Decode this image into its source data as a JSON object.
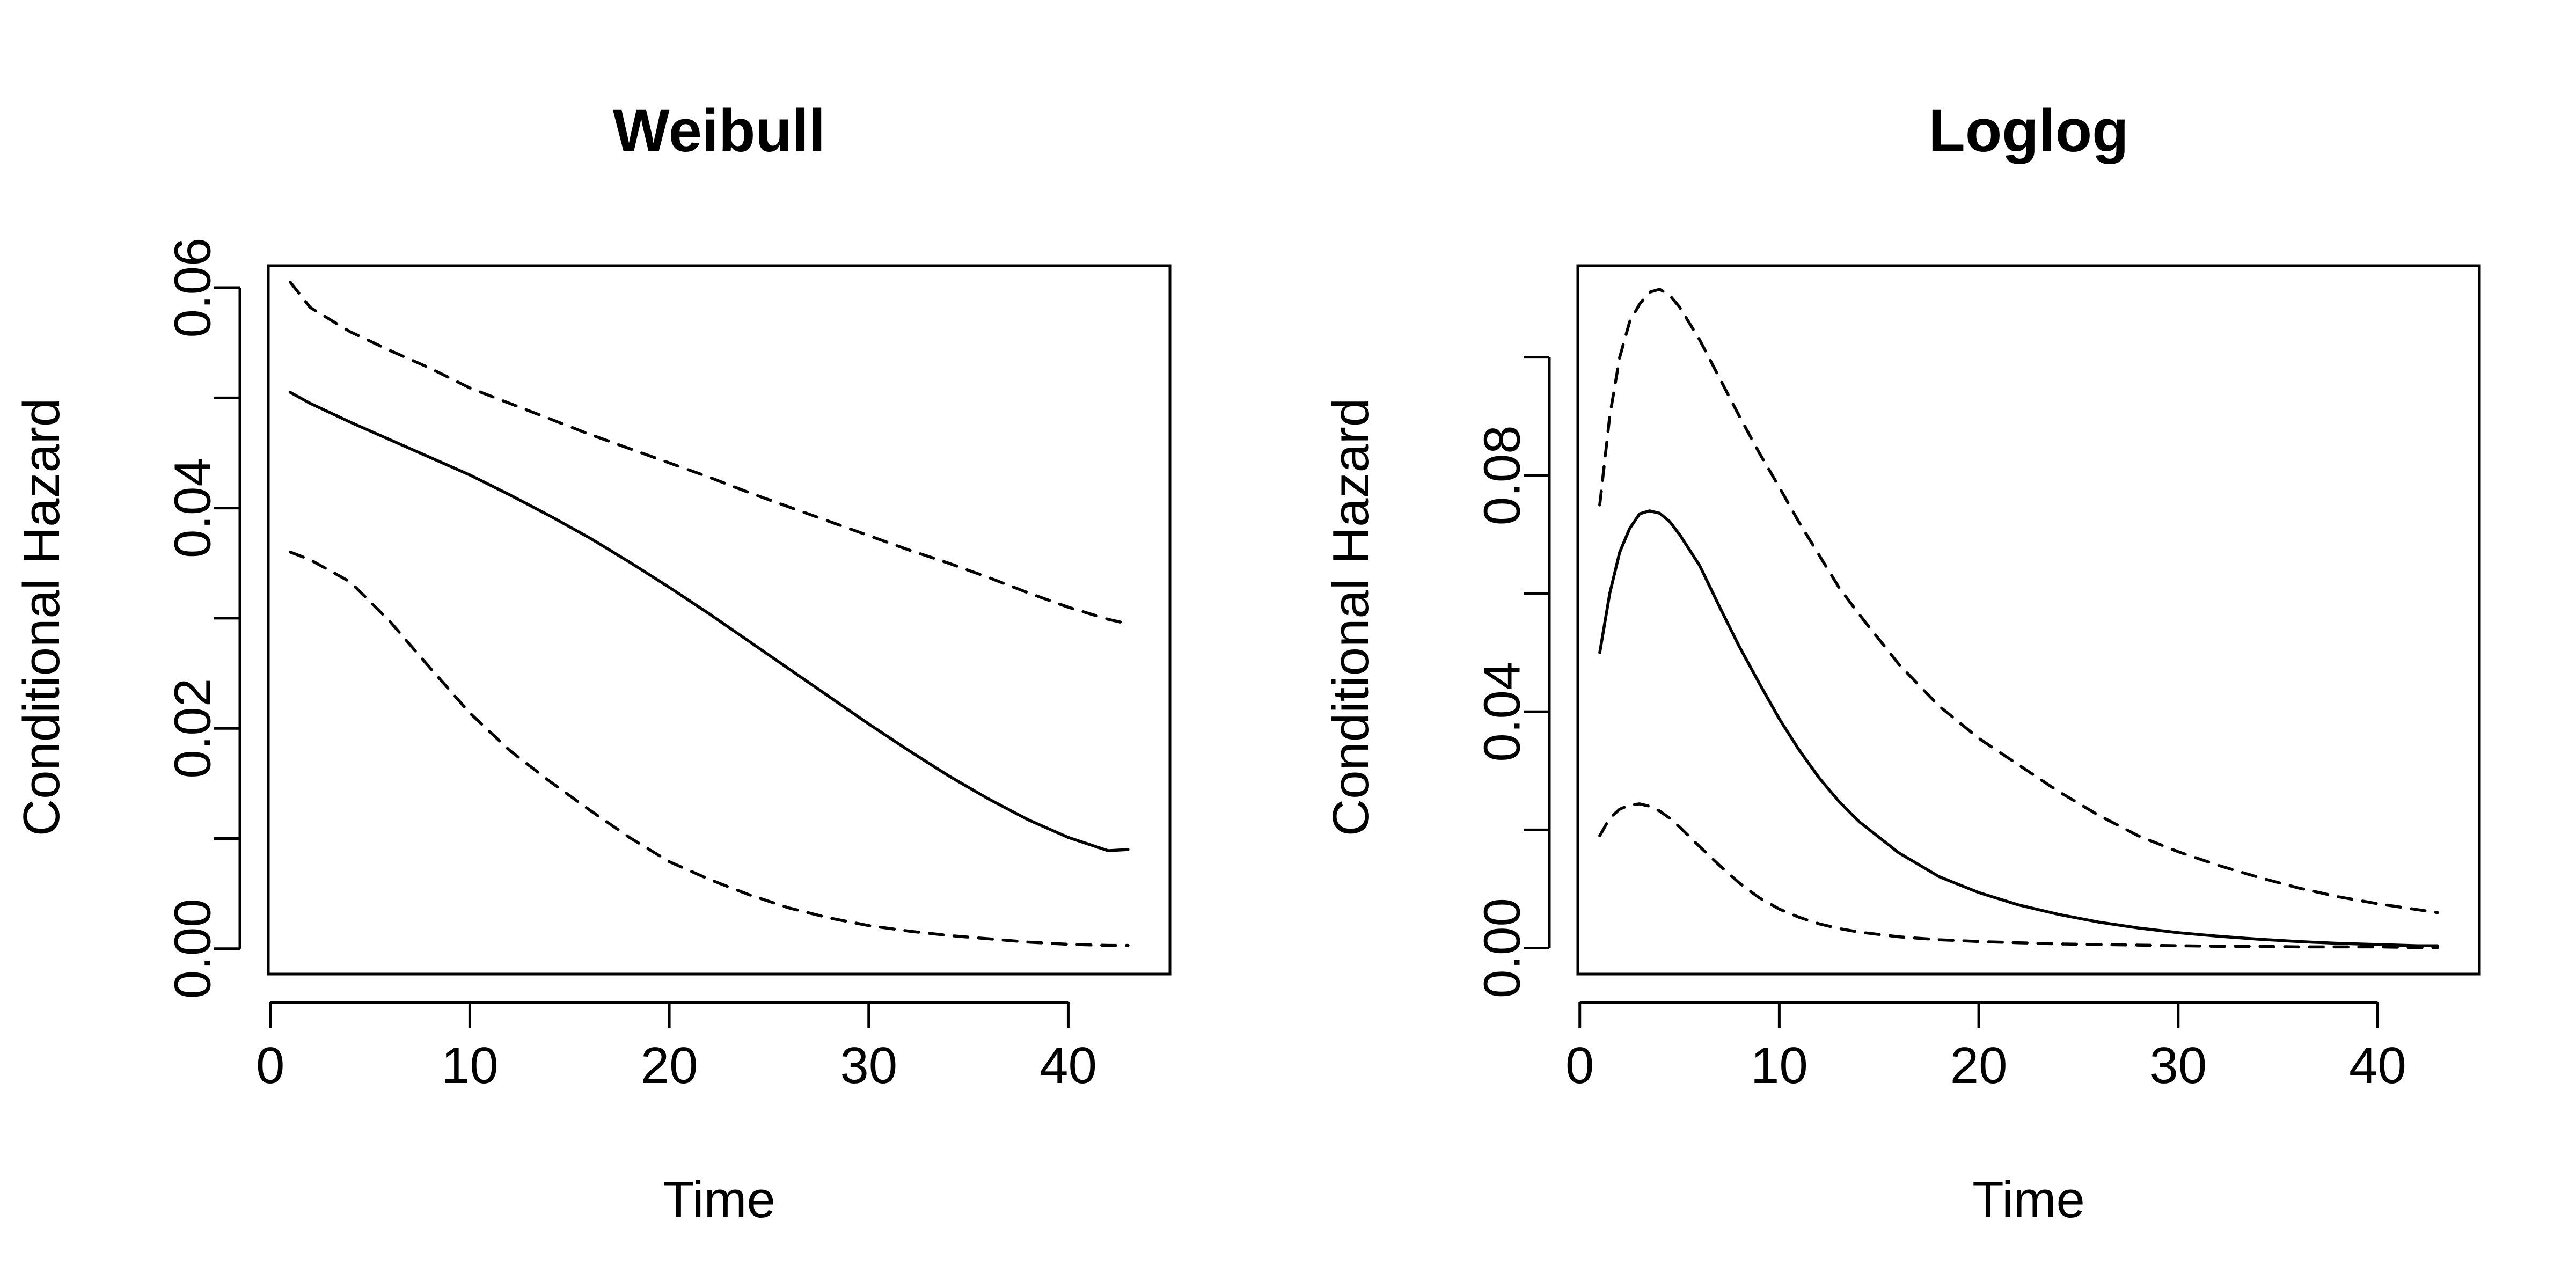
{
  "chart_data": [
    {
      "type": "line",
      "title": "Weibull",
      "xlabel": "Time",
      "ylabel": "Conditional Hazard",
      "xlim": [
        0,
        43
      ],
      "ylim": [
        0.0,
        0.06
      ],
      "xticks": [
        "0",
        "10",
        "20",
        "30",
        "40"
      ],
      "yticks": [
        "0.00",
        "0.02",
        "0.04",
        "0.06"
      ],
      "xtick_values": [
        0,
        10,
        20,
        30,
        40
      ],
      "ytick_values": [
        0.0,
        0.01,
        0.02,
        0.03,
        0.04,
        0.05,
        0.06
      ],
      "ytick_labels": [
        "0.00",
        "",
        "0.02",
        "",
        "0.04",
        "",
        "0.06"
      ],
      "x": [
        1,
        2,
        4,
        6,
        8,
        10,
        12,
        14,
        16,
        18,
        20,
        22,
        24,
        26,
        28,
        30,
        32,
        34,
        36,
        38,
        40,
        42,
        43
      ],
      "series": [
        {
          "style": "solid",
          "values": [
            0.0505,
            0.0495,
            0.0478,
            0.0462,
            0.0446,
            0.043,
            0.0412,
            0.0393,
            0.0373,
            0.0351,
            0.0328,
            0.0304,
            0.0279,
            0.0254,
            0.0229,
            0.0204,
            0.018,
            0.0157,
            0.0136,
            0.0117,
            0.0101,
            0.0089,
            0.009
          ]
        },
        {
          "style": "dashed",
          "values": [
            0.0605,
            0.0582,
            0.056,
            0.0543,
            0.0527,
            0.0509,
            0.0495,
            0.0481,
            0.0467,
            0.0454,
            0.0441,
            0.0428,
            0.0414,
            0.0401,
            0.0388,
            0.0375,
            0.0362,
            0.035,
            0.0337,
            0.0323,
            0.031,
            0.0299,
            0.0295
          ]
        },
        {
          "style": "dashed",
          "values": [
            0.036,
            0.0353,
            0.0333,
            0.0297,
            0.0255,
            0.0214,
            0.018,
            0.0152,
            0.0126,
            0.0101,
            0.0079,
            0.0063,
            0.0049,
            0.0037,
            0.0028,
            0.0021,
            0.0016,
            0.0012,
            0.0009,
            0.0006,
            0.0004,
            0.0003,
            0.0003
          ]
        }
      ]
    },
    {
      "type": "line",
      "title": "Loglog",
      "xlabel": "Time",
      "ylabel": "Conditional Hazard",
      "xlim": [
        0,
        43
      ],
      "ylim": [
        0.0,
        0.115
      ],
      "xticks": [
        "0",
        "10",
        "20",
        "30",
        "40"
      ],
      "yticks": [
        "0.00",
        "0.04",
        "0.08"
      ],
      "xtick_values": [
        0,
        10,
        20,
        30,
        40
      ],
      "ytick_values": [
        0.0,
        0.02,
        0.04,
        0.06,
        0.08,
        0.1
      ],
      "ytick_labels": [
        "0.00",
        "",
        "0.04",
        "",
        "0.08",
        ""
      ],
      "x": [
        1,
        1.5,
        2,
        2.5,
        3,
        3.5,
        4,
        4.5,
        5,
        6,
        7,
        8,
        9,
        10,
        11,
        12,
        13,
        14,
        16,
        18,
        20,
        22,
        24,
        26,
        28,
        30,
        32,
        34,
        36,
        38,
        40,
        42,
        43
      ],
      "series": [
        {
          "style": "solid",
          "values": [
            0.05,
            0.06,
            0.067,
            0.071,
            0.0735,
            0.074,
            0.0736,
            0.0722,
            0.07,
            0.0648,
            0.0578,
            0.051,
            0.0448,
            0.0388,
            0.0335,
            0.0288,
            0.0248,
            0.0214,
            0.0161,
            0.0121,
            0.0094,
            0.0073,
            0.0057,
            0.0044,
            0.0034,
            0.0026,
            0.002,
            0.0015,
            0.0011,
            0.0008,
            0.0006,
            0.0004,
            0.0004
          ]
        },
        {
          "style": "dashed",
          "values": [
            0.075,
            0.09,
            0.1,
            0.106,
            0.109,
            0.111,
            0.1115,
            0.1105,
            0.1085,
            0.103,
            0.0965,
            0.09,
            0.0838,
            0.078,
            0.072,
            0.0665,
            0.061,
            0.0565,
            0.048,
            0.041,
            0.0355,
            0.031,
            0.0265,
            0.0225,
            0.019,
            0.0163,
            0.014,
            0.012,
            0.0102,
            0.0087,
            0.0075,
            0.0065,
            0.006
          ]
        },
        {
          "style": "dashed",
          "values": [
            0.019,
            0.022,
            0.0235,
            0.0242,
            0.0244,
            0.024,
            0.0232,
            0.022,
            0.0205,
            0.0172,
            0.014,
            0.011,
            0.0085,
            0.0066,
            0.0052,
            0.0041,
            0.0033,
            0.0027,
            0.0019,
            0.0014,
            0.0011,
            0.0009,
            0.0007,
            0.0006,
            0.0005,
            0.0004,
            0.0003,
            0.0003,
            0.0002,
            0.0002,
            0.0002,
            0.0001,
            0.0001
          ]
        }
      ]
    }
  ]
}
